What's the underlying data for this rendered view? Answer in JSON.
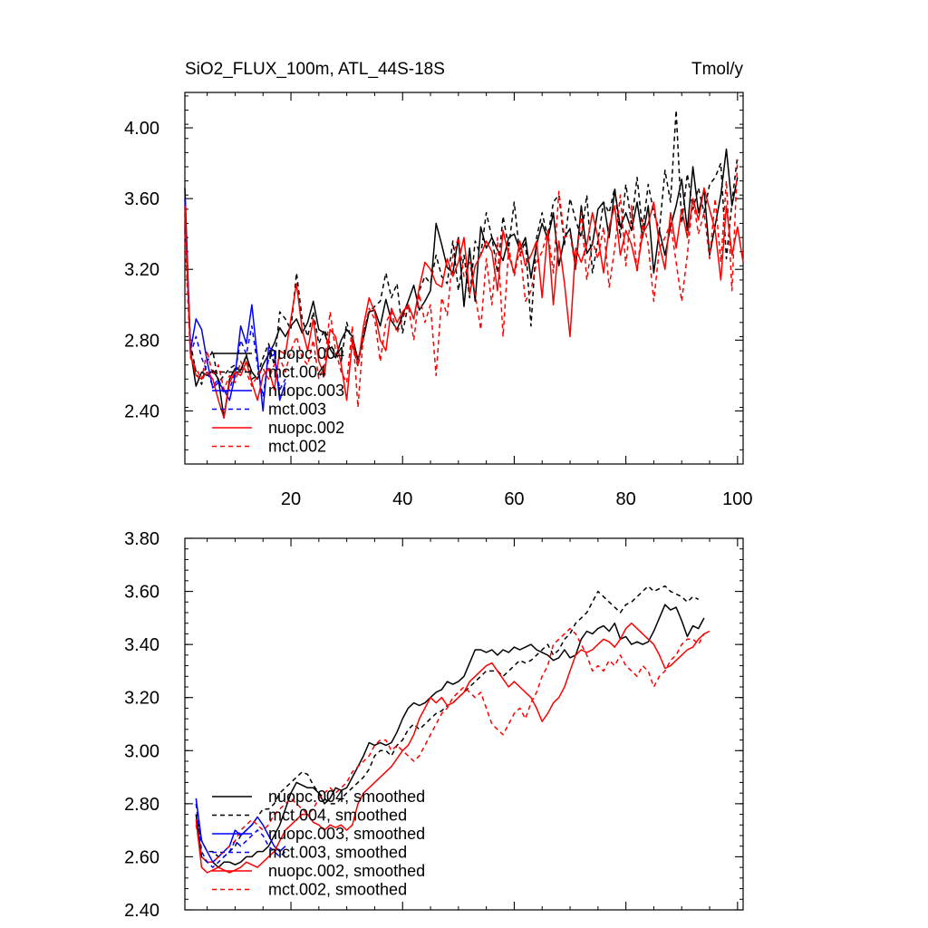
{
  "chart_data": [
    {
      "type": "line",
      "title": "SiO2_FLUX_100m, ATL_44S-18S",
      "units": "Tmol/y",
      "xlim": [
        1,
        101
      ],
      "ylim": [
        2.1,
        4.2
      ],
      "xticks": [
        "20",
        "40",
        "60",
        "80",
        "100"
      ],
      "xtick_values": [
        20,
        40,
        60,
        80,
        100
      ],
      "yticks": [
        "2.40",
        "2.80",
        "3.20",
        "3.60",
        "4.00"
      ],
      "ytick_values": [
        2.4,
        2.8,
        3.2,
        3.6,
        4.0
      ],
      "legend_position": "lower-left",
      "series": [
        {
          "name": "nuopc.004",
          "color": "#000000",
          "dash": "solid",
          "x_start": 1,
          "values": [
            3.66,
            2.74,
            2.54,
            2.62,
            2.6,
            2.63,
            2.58,
            2.36,
            2.58,
            2.64,
            2.63,
            2.71,
            2.62,
            2.58,
            2.66,
            2.72,
            2.78,
            2.87,
            2.82,
            2.88,
            2.92,
            2.84,
            2.9,
            3.02,
            2.86,
            2.84,
            2.75,
            2.7,
            2.8,
            2.86,
            2.82,
            2.69,
            2.81,
            2.96,
            2.97,
            2.88,
            3.03,
            2.91,
            2.86,
            2.94,
            3.02,
            3.11,
            2.97,
            3.02,
            3.08,
            3.46,
            3.34,
            3.21,
            3.18,
            3.38,
            2.99,
            3.32,
            3.02,
            3.44,
            3.32,
            3.38,
            3.31,
            3.25,
            3.38,
            3.4,
            3.31,
            3.38,
            3.15,
            3.34,
            3.46,
            3.37,
            3.52,
            3.22,
            3.38,
            3.43,
            3.21,
            3.56,
            3.29,
            3.34,
            3.54,
            3.58,
            3.38,
            3.65,
            3.44,
            3.52,
            3.42,
            3.58,
            3.38,
            3.56,
            3.18,
            3.42,
            3.28,
            3.44,
            3.56,
            3.71,
            3.42,
            3.78,
            3.52,
            3.65,
            3.28,
            3.45,
            3.62,
            3.88,
            3.56,
            3.72
          ]
        },
        {
          "name": "mct.004",
          "color": "#000000",
          "dash": "dashed",
          "x_start": 1,
          "values": [
            3.52,
            2.78,
            2.62,
            2.55,
            2.68,
            2.74,
            2.56,
            2.6,
            2.64,
            2.66,
            2.62,
            2.72,
            2.58,
            2.6,
            2.7,
            2.78,
            2.66,
            2.96,
            2.92,
            2.86,
            3.18,
            2.92,
            2.82,
            2.96,
            2.78,
            2.86,
            2.78,
            2.72,
            2.68,
            2.9,
            2.78,
            2.65,
            2.84,
            2.96,
            2.99,
            3.02,
            3.18,
            3.04,
            3.12,
            2.84,
            3.0,
            2.92,
            3.08,
            3.16,
            3.12,
            3.28,
            3.16,
            3.12,
            3.36,
            3.08,
            3.28,
            3.04,
            3.36,
            3.28,
            3.52,
            3.38,
            3.18,
            3.5,
            3.32,
            3.58,
            3.28,
            3.36,
            2.88,
            3.38,
            3.52,
            3.38,
            3.58,
            3.62,
            3.34,
            3.6,
            3.48,
            3.38,
            3.62,
            3.18,
            3.36,
            3.58,
            3.52,
            3.66,
            3.38,
            3.68,
            3.46,
            3.72,
            3.42,
            3.68,
            3.52,
            3.42,
            3.76,
            3.58,
            4.1,
            3.46,
            3.74,
            3.54,
            3.66,
            3.52,
            3.68,
            3.72,
            3.8,
            3.26,
            3.58,
            3.84
          ]
        },
        {
          "name": "nuopc.003",
          "color": "#0000ff",
          "dash": "solid",
          "x_start": 1,
          "values": [
            3.6,
            2.74,
            2.92,
            2.86,
            2.68,
            2.53,
            2.56,
            2.52,
            2.46,
            2.6,
            2.88,
            2.78,
            3.0,
            2.7,
            2.4,
            2.76,
            2.74,
            2.46,
            2.56
          ]
        },
        {
          "name": "mct.003",
          "color": "#0000ff",
          "dash": "dashed",
          "x_start": 1,
          "values": [
            3.55,
            2.72,
            2.82,
            2.7,
            2.62,
            2.54,
            2.58,
            2.5,
            2.52,
            2.62,
            2.8,
            2.72,
            2.88,
            2.66,
            2.48,
            2.7,
            2.72,
            2.52,
            2.58
          ]
        },
        {
          "name": "nuopc.002",
          "color": "#ff0000",
          "dash": "solid",
          "x_start": 1,
          "values": [
            3.56,
            2.72,
            2.6,
            2.58,
            2.62,
            2.58,
            2.46,
            2.36,
            2.56,
            2.62,
            2.6,
            2.68,
            2.56,
            2.46,
            2.6,
            2.64,
            2.52,
            2.74,
            2.72,
            2.92,
            3.12,
            2.86,
            2.74,
            2.92,
            2.68,
            2.6,
            2.86,
            2.82,
            2.66,
            2.46,
            2.8,
            2.66,
            2.88,
            3.04,
            2.96,
            2.8,
            2.74,
            2.98,
            2.9,
            2.96,
            3.0,
            2.92,
            3.1,
            3.24,
            3.2,
            3.12,
            3.1,
            3.26,
            3.16,
            3.24,
            3.38,
            3.06,
            3.22,
            3.28,
            3.36,
            3.3,
            3.08,
            3.42,
            3.28,
            3.18,
            3.36,
            3.22,
            3.28,
            3.36,
            3.04,
            3.42,
            3.0,
            3.36,
            3.12,
            2.82,
            3.32,
            3.24,
            3.34,
            3.52,
            3.38,
            3.18,
            3.44,
            3.56,
            3.28,
            3.42,
            3.34,
            3.2,
            3.4,
            3.46,
            3.58,
            3.34,
            3.2,
            3.52,
            3.32,
            3.54,
            3.38,
            3.6,
            3.48,
            3.66,
            3.54,
            3.42,
            3.14,
            3.56,
            3.28,
            3.44,
            3.24
          ]
        },
        {
          "name": "mct.002",
          "color": "#ff0000",
          "dash": "dashed",
          "x_start": 1,
          "values": [
            3.4,
            2.7,
            2.64,
            2.58,
            2.74,
            2.6,
            2.66,
            2.52,
            2.6,
            2.56,
            2.68,
            2.62,
            2.54,
            2.6,
            2.64,
            2.58,
            2.66,
            2.7,
            2.62,
            2.74,
            2.82,
            2.7,
            2.66,
            2.8,
            2.58,
            2.66,
            2.96,
            2.74,
            2.62,
            2.56,
            2.88,
            2.42,
            2.84,
            2.98,
            2.92,
            2.68,
            2.9,
            2.96,
            2.84,
            2.92,
            3.0,
            2.8,
            3.06,
            2.9,
            3.0,
            2.6,
            3.04,
            2.94,
            3.28,
            3.38,
            3.16,
            3.24,
            3.06,
            2.86,
            3.26,
            3.0,
            3.38,
            2.82,
            3.32,
            3.16,
            3.32,
            3.02,
            3.08,
            3.24,
            3.3,
            3.42,
            3.18,
            3.64,
            3.38,
            3.4,
            3.2,
            3.52,
            3.14,
            3.36,
            3.26,
            3.44,
            3.1,
            3.32,
            3.62,
            3.22,
            3.56,
            3.18,
            3.48,
            3.34,
            3.02,
            3.32,
            3.38,
            3.46,
            3.24,
            3.02,
            3.28,
            3.6,
            3.4,
            3.52,
            3.26,
            3.6,
            3.24,
            3.7,
            3.08,
            3.82
          ]
        }
      ],
      "legend": [
        "nuopc.004",
        "mct.004",
        "nuopc.003",
        "mct.003",
        "nuopc.002",
        "mct.002"
      ]
    },
    {
      "type": "line",
      "title": "",
      "xlim": [
        1,
        101
      ],
      "ylim": [
        2.4,
        3.8
      ],
      "xticks": [],
      "yticks": [
        "2.40",
        "2.60",
        "2.80",
        "3.00",
        "3.20",
        "3.40",
        "3.60",
        "3.80"
      ],
      "ytick_values": [
        2.4,
        2.6,
        2.8,
        3.0,
        3.2,
        3.4,
        3.6,
        3.8
      ],
      "legend_position": "lower-left",
      "series": [
        {
          "name": "nuopc.004, smoothed",
          "color": "#000000",
          "dash": "solid",
          "x_start": 3,
          "values": [
            2.76,
            2.6,
            2.58,
            2.58,
            2.56,
            2.58,
            2.58,
            2.57,
            2.58,
            2.6,
            2.6,
            2.62,
            2.62,
            2.64,
            2.68,
            2.72,
            2.78,
            2.84,
            2.88,
            2.87,
            2.86,
            2.86,
            2.84,
            2.8,
            2.82,
            2.86,
            2.85,
            2.86,
            2.9,
            2.94,
            2.98,
            3.03,
            3.02,
            3.03,
            3.02,
            3.03,
            3.07,
            3.12,
            3.16,
            3.18,
            3.17,
            3.18,
            3.2,
            3.22,
            3.23,
            3.26,
            3.25,
            3.26,
            3.28,
            3.33,
            3.38,
            3.38,
            3.37,
            3.38,
            3.36,
            3.38,
            3.37,
            3.39,
            3.38,
            3.39,
            3.4,
            3.38,
            3.37,
            3.36,
            3.34,
            3.35,
            3.38,
            3.35,
            3.36,
            3.42,
            3.45,
            3.44,
            3.46,
            3.47,
            3.45,
            3.48,
            3.42,
            3.43,
            3.4,
            3.41,
            3.4,
            3.41,
            3.45,
            3.5,
            3.55,
            3.53,
            3.54,
            3.49,
            3.43,
            3.47,
            3.46,
            3.5
          ]
        },
        {
          "name": "mct.004, smoothed",
          "color": "#000000",
          "dash": "dashed",
          "x_start": 3,
          "values": [
            2.76,
            2.66,
            2.62,
            2.62,
            2.6,
            2.6,
            2.62,
            2.64,
            2.68,
            2.7,
            2.72,
            2.75,
            2.78,
            2.78,
            2.8,
            2.84,
            2.86,
            2.88,
            2.9,
            2.92,
            2.91,
            2.87,
            2.84,
            2.82,
            2.8,
            2.8,
            2.82,
            2.84,
            2.86,
            2.88,
            2.9,
            2.93,
            2.98,
            3.0,
            3.0,
            2.98,
            3.02,
            3.04,
            3.08,
            3.1,
            3.08,
            3.1,
            3.12,
            3.14,
            3.15,
            3.17,
            3.18,
            3.2,
            3.22,
            3.24,
            3.26,
            3.28,
            3.3,
            3.3,
            3.3,
            3.28,
            3.3,
            3.32,
            3.34,
            3.33,
            3.34,
            3.36,
            3.38,
            3.4,
            3.36,
            3.38,
            3.42,
            3.44,
            3.48,
            3.5,
            3.52,
            3.56,
            3.6,
            3.58,
            3.56,
            3.54,
            3.52,
            3.55,
            3.56,
            3.58,
            3.6,
            3.62,
            3.6,
            3.61,
            3.62,
            3.6,
            3.59,
            3.58,
            3.56,
            3.58,
            3.57
          ]
        },
        {
          "name": "nuopc.003, smoothed",
          "color": "#0000ff",
          "dash": "solid",
          "x_start": 3,
          "values": [
            2.82,
            2.66,
            2.62,
            2.58,
            2.6,
            2.62,
            2.64,
            2.7,
            2.68,
            2.7,
            2.72,
            2.75,
            2.72,
            2.68,
            2.64,
            2.62,
            2.64
          ]
        },
        {
          "name": "mct.003, smoothed",
          "color": "#0000ff",
          "dash": "dashed",
          "x_start": 3,
          "values": [
            2.8,
            2.62,
            2.58,
            2.56,
            2.58,
            2.6,
            2.62,
            2.66,
            2.64,
            2.66,
            2.68,
            2.7,
            2.68,
            2.64,
            2.62,
            2.6,
            2.62
          ]
        },
        {
          "name": "nuopc.002, smoothed",
          "color": "#ff0000",
          "dash": "solid",
          "x_start": 3,
          "values": [
            2.74,
            2.56,
            2.54,
            2.55,
            2.56,
            2.55,
            2.54,
            2.55,
            2.56,
            2.58,
            2.57,
            2.56,
            2.58,
            2.6,
            2.62,
            2.66,
            2.7,
            2.72,
            2.74,
            2.76,
            2.76,
            2.73,
            2.72,
            2.7,
            2.72,
            2.71,
            2.72,
            2.7,
            2.72,
            2.8,
            2.84,
            2.86,
            2.88,
            2.9,
            2.92,
            2.94,
            2.97,
            3.0,
            3.02,
            3.06,
            3.12,
            3.16,
            3.2,
            3.18,
            3.2,
            3.17,
            3.18,
            3.2,
            3.22,
            3.26,
            3.28,
            3.3,
            3.32,
            3.33,
            3.3,
            3.27,
            3.24,
            3.26,
            3.24,
            3.22,
            3.2,
            3.16,
            3.11,
            3.14,
            3.18,
            3.2,
            3.24,
            3.3,
            3.36,
            3.38,
            3.37,
            3.38,
            3.4,
            3.42,
            3.41,
            3.39,
            3.42,
            3.46,
            3.48,
            3.46,
            3.44,
            3.42,
            3.4,
            3.36,
            3.31,
            3.32,
            3.34,
            3.36,
            3.38,
            3.39,
            3.42,
            3.44,
            3.45
          ]
        },
        {
          "name": "mct.002, smoothed",
          "color": "#ff0000",
          "dash": "dashed",
          "x_start": 3,
          "values": [
            2.72,
            2.6,
            2.58,
            2.58,
            2.6,
            2.62,
            2.64,
            2.66,
            2.7,
            2.72,
            2.74,
            2.72,
            2.7,
            2.72,
            2.76,
            2.78,
            2.8,
            2.82,
            2.8,
            2.78,
            2.76,
            2.78,
            2.82,
            2.84,
            2.86,
            2.84,
            2.86,
            2.88,
            2.92,
            2.94,
            2.96,
            2.98,
            3.02,
            3.04,
            3.04,
            3.0,
            3.02,
            3.0,
            2.98,
            2.96,
            2.98,
            3.02,
            3.06,
            3.1,
            3.14,
            3.16,
            3.2,
            3.22,
            3.24,
            3.22,
            3.2,
            3.22,
            3.16,
            3.1,
            3.08,
            3.06,
            3.1,
            3.14,
            3.16,
            3.12,
            3.18,
            3.22,
            3.28,
            3.32,
            3.4,
            3.42,
            3.44,
            3.46,
            3.44,
            3.4,
            3.36,
            3.3,
            3.32,
            3.3,
            3.34,
            3.32,
            3.36,
            3.32,
            3.3,
            3.28,
            3.32,
            3.3,
            3.24,
            3.28,
            3.3,
            3.34,
            3.36,
            3.4,
            3.42,
            3.42,
            3.4,
            3.44
          ]
        }
      ],
      "legend": [
        "nuopc.004, smoothed",
        "mct.004, smoothed",
        "nuopc.003, smoothed",
        "mct.003, smoothed",
        "nuopc.002, smoothed",
        "mct.002, smoothed"
      ]
    }
  ]
}
